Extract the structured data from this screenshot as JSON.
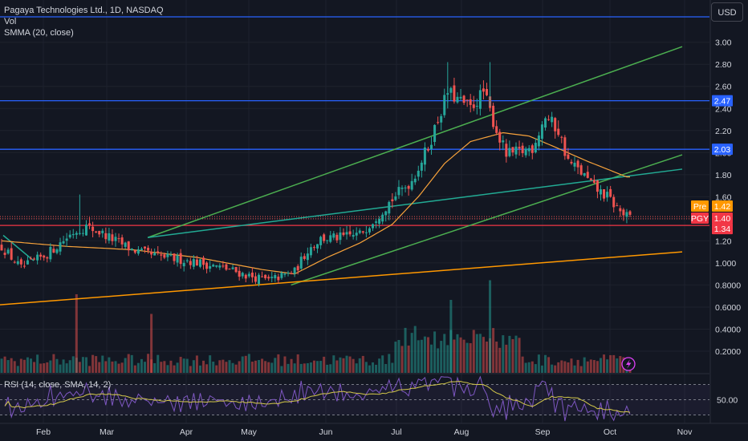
{
  "header": {
    "symbol_line": "Pagaya Technologies Ltd., 1D, NASDAQ",
    "indicator_1": "Vol",
    "indicator_2": "SMMA (20, close)",
    "currency": "USD"
  },
  "rsi_label": "RSI (14, close, SMA, 14, 2)",
  "price_tags": {
    "pre_label": "Pre",
    "pre_value": "1.42",
    "pgy_label": "PGY",
    "pgy_value": "1.40",
    "level_134": "1.34",
    "level_203": "2.03",
    "level_247": "2.47"
  },
  "colors": {
    "background": "#131722",
    "up": "#26a69a",
    "down": "#ef5350",
    "hline_blue": "#2962ff",
    "hline_red": "#f23645",
    "channel_green": "#4caf50",
    "teal_line": "#22ab94",
    "orange_line": "#ff9800",
    "smma": "#f7a23b",
    "rsi_line": "#7e57c2",
    "rsi_ma": "#d4c84a",
    "grid": "#1e222d",
    "axis_text": "#d1d4dc"
  },
  "chart_data": {
    "type": "candlestick",
    "title": "Pagaya Technologies Ltd., 1D, NASDAQ",
    "x_tick_labels": [
      "Feb",
      "Mar",
      "Apr",
      "May",
      "Jun",
      "Jul",
      "Aug",
      "Sep",
      "Oct",
      "Nov"
    ],
    "y_tick_labels": [
      "0.2000",
      "0.4000",
      "0.6000",
      "0.8000",
      "1.000",
      "1.20",
      "1.40",
      "1.60",
      "1.80",
      "2.00",
      "2.20",
      "2.40",
      "2.60",
      "2.80",
      "3.00"
    ],
    "ylim": [
      0.05,
      3.1
    ],
    "close_keyframes": [
      [
        0,
        1.15
      ],
      [
        6,
        0.95
      ],
      [
        14,
        1.08
      ],
      [
        22,
        1.28
      ],
      [
        26,
        1.33
      ],
      [
        30,
        1.28
      ],
      [
        35,
        1.2
      ],
      [
        40,
        1.12
      ],
      [
        46,
        1.07
      ],
      [
        52,
        1.04
      ],
      [
        58,
        1.02
      ],
      [
        64,
        0.98
      ],
      [
        70,
        0.94
      ],
      [
        76,
        0.88
      ],
      [
        82,
        0.84
      ],
      [
        86,
        0.88
      ],
      [
        90,
        0.92
      ],
      [
        94,
        1.12
      ],
      [
        98,
        1.22
      ],
      [
        104,
        1.23
      ],
      [
        110,
        1.26
      ],
      [
        116,
        1.45
      ],
      [
        120,
        1.58
      ],
      [
        126,
        1.75
      ],
      [
        131,
        2.05
      ],
      [
        134,
        2.3
      ],
      [
        137,
        2.55
      ],
      [
        140,
        2.48
      ],
      [
        144,
        2.4
      ],
      [
        148,
        2.55
      ],
      [
        152,
        2.2
      ],
      [
        155,
        1.98
      ],
      [
        159,
        2.0
      ],
      [
        163,
        2.05
      ],
      [
        167,
        2.33
      ],
      [
        171,
        2.2
      ],
      [
        174,
        1.92
      ],
      [
        178,
        1.82
      ],
      [
        182,
        1.68
      ],
      [
        186,
        1.6
      ],
      [
        189,
        1.5
      ],
      [
        191,
        1.44
      ],
      [
        193,
        1.4
      ]
    ],
    "smma_keyframes": [
      [
        0,
        1.2
      ],
      [
        20,
        1.15
      ],
      [
        40,
        1.12
      ],
      [
        60,
        1.05
      ],
      [
        80,
        0.94
      ],
      [
        90,
        0.9
      ],
      [
        100,
        1.05
      ],
      [
        110,
        1.18
      ],
      [
        120,
        1.35
      ],
      [
        128,
        1.6
      ],
      [
        136,
        1.9
      ],
      [
        144,
        2.1
      ],
      [
        154,
        2.18
      ],
      [
        162,
        2.15
      ],
      [
        170,
        2.05
      ],
      [
        180,
        1.92
      ],
      [
        192,
        1.78
      ]
    ],
    "lines": [
      {
        "name": "channel-upper",
        "from": [
          "2023-03-17",
          1.23
        ],
        "to": [
          "2023-10-31",
          2.96
        ]
      },
      {
        "name": "channel-lower",
        "from": [
          "2023-05-18",
          0.8
        ],
        "to": [
          "2023-10-31",
          1.98
        ]
      },
      {
        "name": "teal-trendline",
        "from": [
          "2023-03-17",
          1.23
        ],
        "to": [
          "2023-10-31",
          1.85
        ]
      },
      {
        "name": "orange-trendline",
        "from": [
          "2023-01-01",
          0.62
        ],
        "to": [
          "2023-10-31",
          1.1
        ]
      },
      {
        "name": "hline-247",
        "value": 2.47
      },
      {
        "name": "hline-203",
        "value": 2.03
      },
      {
        "name": "hline-134",
        "value": 1.34
      }
    ],
    "rsi": {
      "label": "RSI (14, close, SMA, 14, 2)",
      "tick_label": "50.00",
      "levels": [
        70,
        50,
        30
      ]
    }
  }
}
